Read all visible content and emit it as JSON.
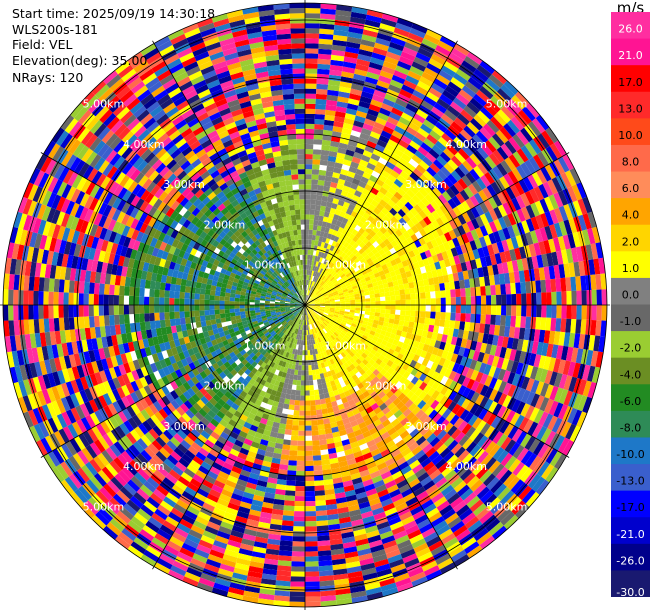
{
  "header": {
    "start_time": "Start time: 2025/09/19 14:30:18",
    "station": "WLS200s-181",
    "field": "Field: VEL",
    "elevation": "Elevation(deg): 35.00",
    "nrays": "NRays: 120"
  },
  "ppi": {
    "ring_labels": [
      "1.00km",
      "2.00km",
      "3.00km",
      "4.00km",
      "5.00km"
    ],
    "n_rays": 120
  },
  "colorbar": {
    "unit": "m/s",
    "ticks": [
      "26.0",
      "21.0",
      "17.0",
      "13.0",
      "10.0",
      "8.0",
      "6.0",
      "4.0",
      "2.0",
      "1.0",
      "0.0",
      "-1.0",
      "-2.0",
      "-4.0",
      "-6.0",
      "-8.0",
      "-10.0",
      "-13.0",
      "-17.0",
      "-21.0",
      "-26.0",
      "-30.0"
    ],
    "colors": [
      "#ff2ea0",
      "#ff1493",
      "#ff0000",
      "#ff2a2a",
      "#ff4a1a",
      "#ff6a4a",
      "#ff8c5a",
      "#ffa500",
      "#ffd500",
      "#ffff00",
      "#808080",
      "#686868",
      "#9acd32",
      "#6b8e23",
      "#228b22",
      "#2e8b57",
      "#1e78c8",
      "#3a5fcd",
      "#0000ff",
      "#0000cd",
      "#00008b",
      "#191970"
    ]
  }
}
